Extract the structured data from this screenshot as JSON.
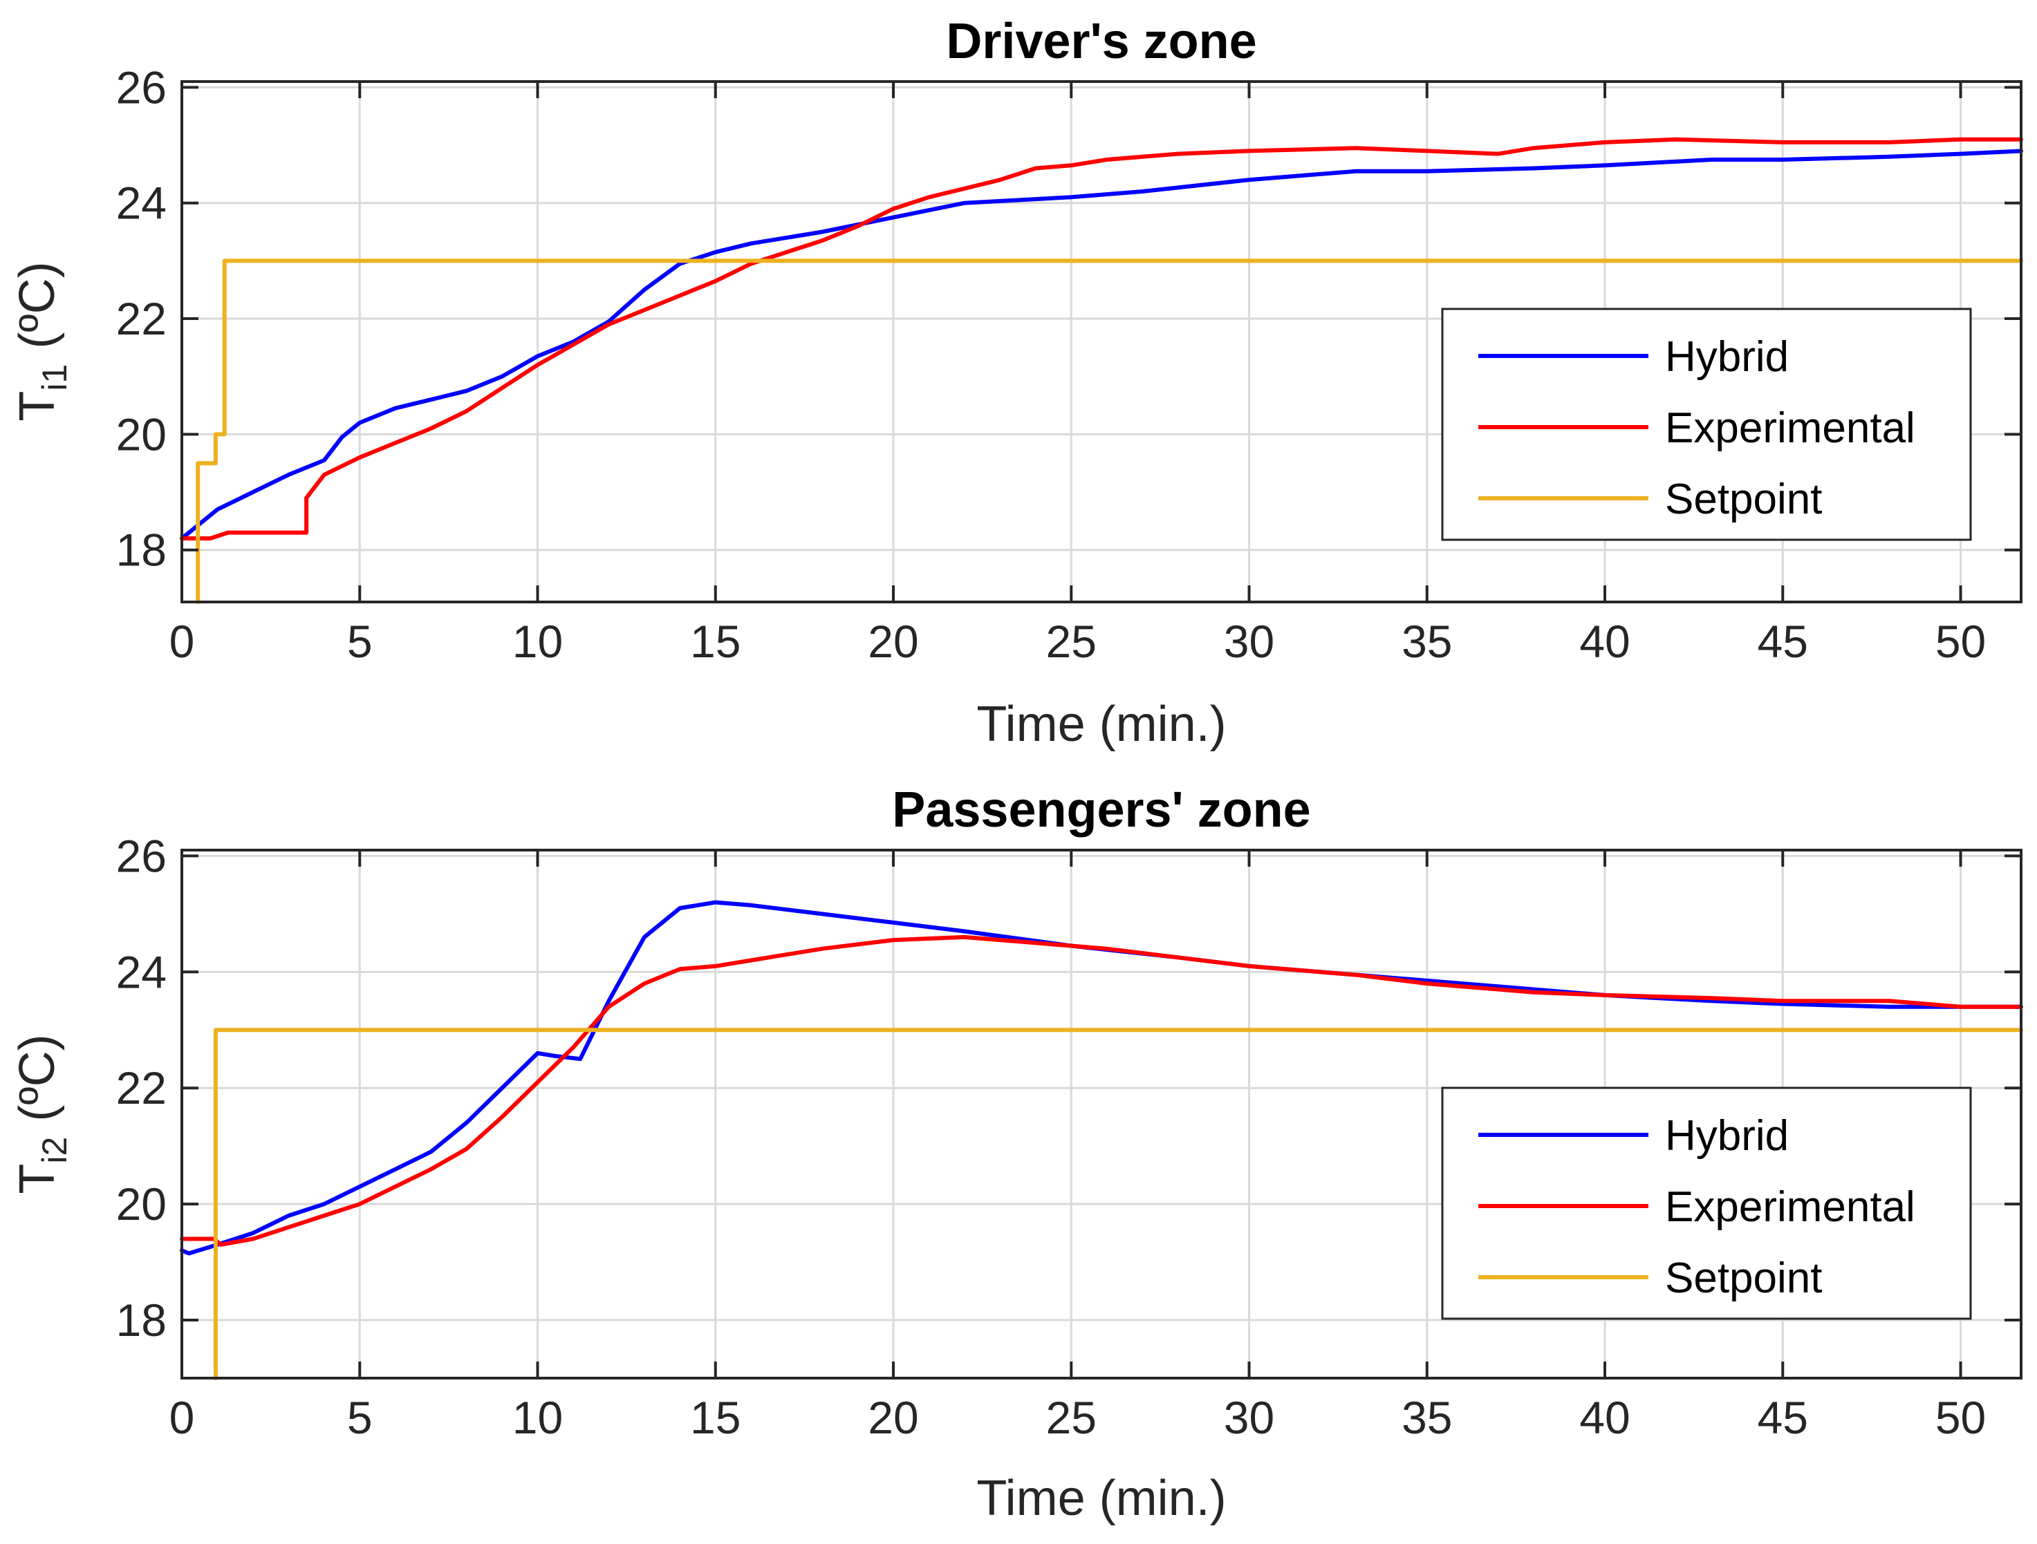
{
  "colors": {
    "hybrid": "#0000ff",
    "experimental": "#ff0000",
    "setpoint": "#edb120"
  },
  "chart_data": [
    {
      "type": "line",
      "title": "Driver's zone",
      "xlabel": "Time (min.)",
      "ylabel_main": "T",
      "ylabel_sub": "i1",
      "ylabel_unit": "(ºC)",
      "xlim": [
        0,
        51.7
      ],
      "ylim": [
        17.1,
        26.1
      ],
      "xticks": [
        0,
        5,
        10,
        15,
        20,
        25,
        30,
        35,
        40,
        45,
        50
      ],
      "yticks": [
        18,
        20,
        22,
        24,
        26
      ],
      "grid": true,
      "legend_location": "right",
      "series": [
        {
          "name": "Hybrid",
          "color": "#0000ff",
          "x": [
            0,
            0.5,
            1,
            2,
            3,
            4,
            4.5,
            5,
            6,
            7,
            8,
            9,
            10,
            11,
            12,
            13,
            14,
            15,
            16,
            18,
            20,
            22,
            25,
            27,
            30,
            33,
            35,
            38,
            40,
            43,
            45,
            48,
            50,
            51.7
          ],
          "y": [
            18.2,
            18.45,
            18.7,
            19.0,
            19.3,
            19.55,
            19.95,
            20.2,
            20.45,
            20.6,
            20.75,
            21.0,
            21.35,
            21.6,
            21.95,
            22.5,
            22.95,
            23.15,
            23.3,
            23.5,
            23.75,
            24.0,
            24.1,
            24.2,
            24.4,
            24.55,
            24.55,
            24.6,
            24.65,
            24.75,
            24.75,
            24.8,
            24.85,
            24.9
          ]
        },
        {
          "name": "Experimental",
          "color": "#ff0000",
          "x": [
            0,
            0.8,
            1.3,
            2,
            3,
            3.5,
            3.5,
            4,
            5,
            6,
            7,
            8,
            9,
            10,
            11,
            12,
            13,
            14,
            15,
            16,
            17,
            18,
            19,
            20,
            21,
            22,
            23,
            24,
            25,
            26,
            27,
            28,
            30,
            33,
            35,
            37,
            38,
            40,
            42,
            45,
            48,
            50,
            51.7
          ],
          "y": [
            18.2,
            18.2,
            18.3,
            18.3,
            18.3,
            18.3,
            18.9,
            19.3,
            19.6,
            19.85,
            20.1,
            20.4,
            20.8,
            21.2,
            21.55,
            21.9,
            22.15,
            22.4,
            22.65,
            22.95,
            23.15,
            23.35,
            23.6,
            23.9,
            24.1,
            24.25,
            24.4,
            24.6,
            24.65,
            24.75,
            24.8,
            24.85,
            24.9,
            24.95,
            24.9,
            24.85,
            24.95,
            25.05,
            25.1,
            25.05,
            25.05,
            25.1,
            25.1
          ]
        },
        {
          "name": "Setpoint",
          "color": "#edb120",
          "x": [
            0.45,
            0.45,
            0.45,
            0.95,
            0.95,
            1.2,
            1.2,
            51.7
          ],
          "y": [
            17.1,
            19.5,
            19.5,
            19.5,
            20.0,
            20.0,
            23.0,
            23.0
          ]
        }
      ]
    },
    {
      "type": "line",
      "title": "Passengers' zone",
      "xlabel": "Time (min.)",
      "ylabel_main": "T",
      "ylabel_sub": "i2",
      "ylabel_unit": "(ºC)",
      "xlim": [
        0,
        51.7
      ],
      "ylim": [
        17.0,
        26.1
      ],
      "xticks": [
        0,
        5,
        10,
        15,
        20,
        25,
        30,
        35,
        40,
        45,
        50
      ],
      "yticks": [
        18,
        20,
        22,
        24,
        26
      ],
      "grid": true,
      "legend_location": "right",
      "series": [
        {
          "name": "Hybrid",
          "color": "#0000ff",
          "x": [
            0,
            0.2,
            1,
            2,
            3,
            4,
            5,
            6,
            7,
            8,
            9,
            10,
            10.5,
            11.2,
            12,
            13,
            14,
            15,
            16,
            18,
            20,
            22,
            25,
            28,
            30,
            33,
            35,
            38,
            40,
            43,
            45,
            48,
            50,
            51.7
          ],
          "y": [
            19.2,
            19.15,
            19.3,
            19.5,
            19.8,
            20.0,
            20.3,
            20.6,
            20.9,
            21.4,
            22.0,
            22.6,
            22.55,
            22.5,
            23.5,
            24.6,
            25.1,
            25.2,
            25.15,
            25.0,
            24.85,
            24.7,
            24.45,
            24.25,
            24.1,
            23.95,
            23.85,
            23.7,
            23.6,
            23.5,
            23.45,
            23.4,
            23.4,
            23.4
          ]
        },
        {
          "name": "Experimental",
          "color": "#ff0000",
          "x": [
            0,
            0.9,
            1.1,
            2,
            3,
            4,
            5,
            6,
            7,
            8,
            9,
            10,
            11,
            12,
            13,
            14,
            15,
            16,
            17,
            18,
            20,
            22,
            24,
            26,
            28,
            30,
            33,
            35,
            38,
            40,
            43,
            45,
            48,
            50,
            51.7
          ],
          "y": [
            19.4,
            19.4,
            19.3,
            19.4,
            19.6,
            19.8,
            20.0,
            20.3,
            20.6,
            20.95,
            21.5,
            22.1,
            22.7,
            23.4,
            23.8,
            24.05,
            24.1,
            24.2,
            24.3,
            24.4,
            24.55,
            24.6,
            24.5,
            24.4,
            24.25,
            24.1,
            23.95,
            23.8,
            23.65,
            23.6,
            23.55,
            23.5,
            23.5,
            23.4,
            23.4
          ]
        },
        {
          "name": "Setpoint",
          "color": "#edb120",
          "x": [
            0.95,
            0.95,
            51.7
          ],
          "y": [
            17.0,
            23.0,
            23.0
          ]
        }
      ]
    }
  ]
}
